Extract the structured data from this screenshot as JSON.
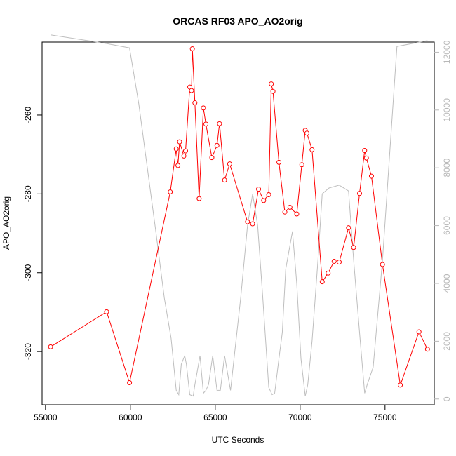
{
  "chart_data": {
    "type": "line",
    "title": "ORCAS RF03 APO_AO2orig",
    "xlabel": "UTC Seconds",
    "ylabel": "APO_AO2orig",
    "xlim": [
      54800,
      77900
    ],
    "ylim": [
      -333.5,
      -241.5
    ],
    "y2lim": [
      -200,
      12350
    ],
    "x_ticks": [
      55000,
      60000,
      65000,
      70000,
      75000
    ],
    "y_ticks": [
      -320,
      -300,
      -280,
      -260
    ],
    "y2_ticks": [
      0,
      2000,
      4000,
      6000,
      8000,
      10000,
      12000
    ],
    "series": [
      {
        "color": "#ff0000",
        "axis": "left",
        "style": "line+points",
        "x": [
          55300,
          58600,
          59950,
          62350,
          62700,
          62800,
          62900,
          63150,
          63250,
          63500,
          63600,
          63650,
          63800,
          64050,
          64300,
          64450,
          64800,
          65100,
          65250,
          65550,
          65850,
          66900,
          67200,
          67550,
          67850,
          68150,
          68300,
          68400,
          68750,
          69100,
          69400,
          69800,
          70100,
          70300,
          70400,
          70700,
          71300,
          71650,
          72000,
          72300,
          72850,
          73150,
          73500,
          73800,
          73900,
          74200,
          74850,
          75900,
          77000,
          77500
        ],
        "y": [
          -318.8,
          -309.9,
          -327.9,
          -279.5,
          -268.6,
          -272.8,
          -266.8,
          -270.4,
          -269.1,
          -252.9,
          -253.8,
          -243.2,
          -256.9,
          -281.2,
          -258.2,
          -262.3,
          -270.8,
          -267.7,
          -262.2,
          -276.5,
          -272.4,
          -287.1,
          -287.6,
          -278.8,
          -281.7,
          -280.2,
          -252.1,
          -254.0,
          -272.0,
          -284.6,
          -283.4,
          -285.1,
          -272.6,
          -263.9,
          -264.6,
          -268.8,
          -302.3,
          -300.1,
          -297.1,
          -297.3,
          -288.6,
          -293.6,
          -279.9,
          -269.0,
          -270.9,
          -275.5,
          -297.9,
          -328.5,
          -315.0,
          -319.4
        ]
      },
      {
        "color": "#bebebe",
        "axis": "right",
        "style": "line",
        "x": [
          55300,
          58600,
          59950,
          60500,
          61000,
          61500,
          62000,
          62400,
          62700,
          62850,
          63000,
          63200,
          63300,
          63500,
          63700,
          63800,
          64100,
          64300,
          64450,
          64600,
          64850,
          65100,
          65300,
          65550,
          65900,
          66500,
          66900,
          67200,
          67500,
          67800,
          68150,
          68350,
          68500,
          68750,
          68950,
          69150,
          69550,
          69800,
          70050,
          70300,
          70450,
          70700,
          71050,
          71300,
          71700,
          72300,
          72850,
          73150,
          73500,
          73800,
          73950,
          74300,
          74850,
          75700,
          77500
        ],
        "y": [
          12600,
          12300,
          12150,
          10200,
          8000,
          5800,
          3500,
          2100,
          300,
          150,
          1200,
          1500,
          1200,
          150,
          100,
          500,
          1500,
          200,
          300,
          500,
          1500,
          300,
          300,
          1500,
          300,
          3500,
          6000,
          7100,
          6000,
          3500,
          400,
          150,
          200,
          1400,
          2300,
          4500,
          5800,
          4000,
          1400,
          100,
          500,
          2000,
          4800,
          7100,
          7300,
          7400,
          7200,
          4800,
          2300,
          200,
          500,
          1100,
          4800,
          12200,
          12400
        ]
      }
    ]
  }
}
